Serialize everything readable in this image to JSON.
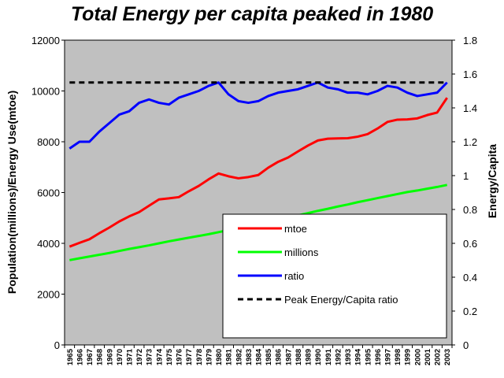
{
  "chart_data": {
    "type": "line",
    "title": "Total Energy per capita peaked in 1980",
    "ylabel_left": "Population(millions)/Energy Use(mtoe)",
    "ylabel_right": "Energy/Capita",
    "ylim_left": [
      0,
      12000
    ],
    "ylim_right": [
      0,
      1.8
    ],
    "yticks_left": [
      "0",
      "2000",
      "4000",
      "6000",
      "8000",
      "10000",
      "12000"
    ],
    "yticks_right": [
      "0",
      "0.2",
      "0.4",
      "0.6",
      "0.8",
      "1",
      "1.2",
      "1.4",
      "1.6",
      "1.8"
    ],
    "x": [
      "1965",
      "1966",
      "1967",
      "1968",
      "1969",
      "1970",
      "1971",
      "1972",
      "1973",
      "1974",
      "1975",
      "1976",
      "1977",
      "1978",
      "1979",
      "1980",
      "1981",
      "1982",
      "1983",
      "1984",
      "1985",
      "1986",
      "1987",
      "1988",
      "1989",
      "1990",
      "1991",
      "1992",
      "1993",
      "1994",
      "1995",
      "1996",
      "1997",
      "1998",
      "1999",
      "2000",
      "2001",
      "2002",
      "2003"
    ],
    "grid": false,
    "legend_position": "bottom-right",
    "series": [
      {
        "name": "mtoe",
        "axis": "left",
        "color": "#ff0000",
        "values": [
          3870,
          4020,
          4160,
          4400,
          4620,
          4860,
          5060,
          5230,
          5480,
          5730,
          5770,
          5820,
          6050,
          6260,
          6520,
          6750,
          6640,
          6560,
          6610,
          6690,
          6980,
          7210,
          7380,
          7620,
          7850,
          8050,
          8120,
          8130,
          8140,
          8200,
          8300,
          8520,
          8780,
          8870,
          8880,
          8920,
          9050,
          9150,
          9730
        ]
      },
      {
        "name": "millions",
        "axis": "left",
        "color": "#00ff00",
        "values": [
          3340,
          3410,
          3480,
          3550,
          3620,
          3700,
          3780,
          3850,
          3920,
          4000,
          4080,
          4150,
          4220,
          4290,
          4360,
          4440,
          4520,
          4600,
          4680,
          4760,
          4840,
          4920,
          5000,
          5100,
          5190,
          5280,
          5360,
          5450,
          5530,
          5620,
          5700,
          5780,
          5860,
          5940,
          6020,
          6080,
          6150,
          6220,
          6300
        ]
      },
      {
        "name": "ratio",
        "axis": "right",
        "color": "#0000ff",
        "values": [
          1.16,
          1.2,
          1.2,
          1.26,
          1.31,
          1.36,
          1.38,
          1.43,
          1.45,
          1.43,
          1.42,
          1.46,
          1.48,
          1.5,
          1.53,
          1.55,
          1.48,
          1.44,
          1.43,
          1.44,
          1.47,
          1.49,
          1.5,
          1.51,
          1.53,
          1.55,
          1.52,
          1.51,
          1.49,
          1.49,
          1.48,
          1.5,
          1.53,
          1.52,
          1.49,
          1.47,
          1.48,
          1.49,
          1.55
        ]
      },
      {
        "name": "Peak Energy/Capita ratio",
        "axis": "right",
        "color": "#000000",
        "dashed": true,
        "values": [
          1.55,
          1.55,
          1.55,
          1.55,
          1.55,
          1.55,
          1.55,
          1.55,
          1.55,
          1.55,
          1.55,
          1.55,
          1.55,
          1.55,
          1.55,
          1.55,
          1.55,
          1.55,
          1.55,
          1.55,
          1.55,
          1.55,
          1.55,
          1.55,
          1.55,
          1.55,
          1.55,
          1.55,
          1.55,
          1.55,
          1.55,
          1.55,
          1.55,
          1.55,
          1.55,
          1.55,
          1.55,
          1.55,
          1.55
        ]
      }
    ]
  }
}
